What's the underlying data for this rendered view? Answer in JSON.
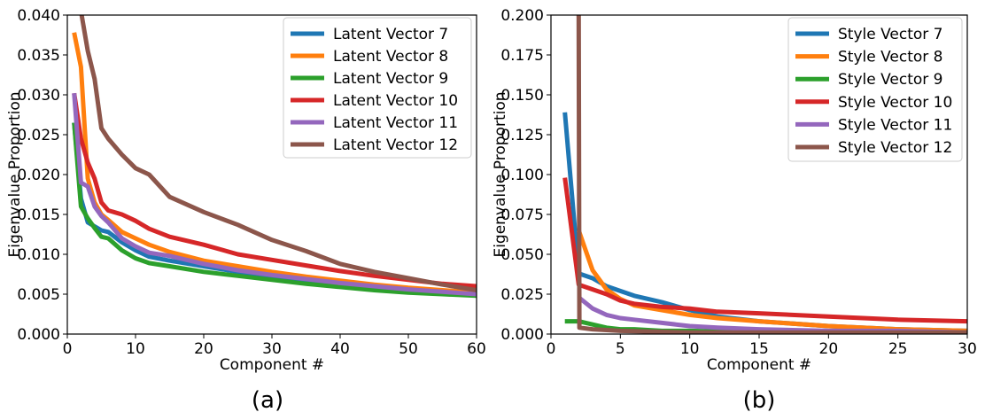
{
  "colors": [
    "#1f77b4",
    "#ff7f0e",
    "#2ca02c",
    "#d62728",
    "#9467bd",
    "#8c564b"
  ],
  "chart_data": [
    {
      "type": "line",
      "caption": "(a)",
      "xlabel": "Component #",
      "ylabel": "Eigenvalue Proportion",
      "xlim": [
        0,
        60
      ],
      "ylim": [
        0,
        0.04
      ],
      "xticks": [
        0,
        10,
        20,
        30,
        40,
        50,
        60
      ],
      "xtick_labels": [
        "0",
        "10",
        "20",
        "30",
        "40",
        "50",
        "60"
      ],
      "yticks": [
        0,
        0.005,
        0.01,
        0.015,
        0.02,
        0.025,
        0.03,
        0.035,
        0.04
      ],
      "ytick_labels": [
        "0.000",
        "0.005",
        "0.010",
        "0.015",
        "0.020",
        "0.025",
        "0.030",
        "0.035",
        "0.040"
      ],
      "legend_position": "top-right",
      "series": [
        {
          "name": "Latent Vector 7",
          "x": [
            1,
            2,
            3,
            4,
            5,
            6,
            8,
            10,
            12,
            15,
            20,
            25,
            30,
            35,
            40,
            45,
            50,
            55,
            60
          ],
          "values": [
            0.0265,
            0.017,
            0.014,
            0.0135,
            0.013,
            0.0128,
            0.0115,
            0.0105,
            0.0097,
            0.0092,
            0.0085,
            0.0078,
            0.0072,
            0.0067,
            0.0062,
            0.0058,
            0.0055,
            0.0052,
            0.005
          ]
        },
        {
          "name": "Latent Vector 8",
          "x": [
            1,
            2,
            3,
            4,
            5,
            6,
            8,
            10,
            12,
            15,
            20,
            25,
            30,
            35,
            40,
            45,
            50,
            55,
            60
          ],
          "values": [
            0.0378,
            0.0335,
            0.0195,
            0.0165,
            0.015,
            0.0143,
            0.0128,
            0.012,
            0.0112,
            0.0103,
            0.0092,
            0.0085,
            0.0078,
            0.0072,
            0.0067,
            0.0062,
            0.0058,
            0.0055,
            0.0052
          ]
        },
        {
          "name": "Latent Vector 9",
          "x": [
            1,
            2,
            3,
            4,
            5,
            6,
            8,
            10,
            12,
            15,
            20,
            25,
            30,
            35,
            40,
            45,
            50,
            55,
            60
          ],
          "values": [
            0.0265,
            0.016,
            0.0145,
            0.0133,
            0.0122,
            0.012,
            0.0105,
            0.0095,
            0.0089,
            0.0085,
            0.0078,
            0.0073,
            0.0068,
            0.0063,
            0.0059,
            0.0055,
            0.0052,
            0.005,
            0.0048
          ]
        },
        {
          "name": "Latent Vector 10",
          "x": [
            1,
            2,
            3,
            4,
            5,
            6,
            8,
            10,
            12,
            15,
            20,
            25,
            30,
            35,
            40,
            45,
            50,
            55,
            60
          ],
          "values": [
            0.0302,
            0.0245,
            0.0215,
            0.0195,
            0.0165,
            0.0155,
            0.015,
            0.0142,
            0.0132,
            0.0122,
            0.0112,
            0.01,
            0.0093,
            0.0086,
            0.0079,
            0.0073,
            0.0068,
            0.0063,
            0.006
          ]
        },
        {
          "name": "Latent Vector 11",
          "x": [
            1,
            2,
            3,
            4,
            5,
            6,
            8,
            10,
            12,
            15,
            20,
            25,
            30,
            35,
            40,
            45,
            50,
            55,
            60
          ],
          "values": [
            0.0302,
            0.019,
            0.0185,
            0.016,
            0.0148,
            0.014,
            0.012,
            0.011,
            0.0102,
            0.0098,
            0.0088,
            0.008,
            0.0074,
            0.0069,
            0.0064,
            0.006,
            0.0056,
            0.0053,
            0.005
          ]
        },
        {
          "name": "Latent Vector 12",
          "x": [
            2,
            3,
            4,
            5,
            6,
            8,
            10,
            12,
            15,
            20,
            25,
            30,
            35,
            40,
            45,
            50,
            55,
            60
          ],
          "values": [
            0.0405,
            0.0355,
            0.032,
            0.0258,
            0.0245,
            0.0225,
            0.0208,
            0.02,
            0.0172,
            0.0153,
            0.0137,
            0.0118,
            0.0104,
            0.0088,
            0.0078,
            0.007,
            0.0062,
            0.0055
          ]
        }
      ]
    },
    {
      "type": "line",
      "caption": "(b)",
      "xlabel": "Component #",
      "ylabel": "Eigenvalue Proportion",
      "xlim": [
        0,
        30
      ],
      "ylim": [
        0,
        0.2
      ],
      "xticks": [
        0,
        5,
        10,
        15,
        20,
        25,
        30
      ],
      "xtick_labels": [
        "0",
        "5",
        "10",
        "15",
        "20",
        "25",
        "30"
      ],
      "yticks": [
        0,
        0.025,
        0.05,
        0.075,
        0.1,
        0.125,
        0.15,
        0.175,
        0.2
      ],
      "ytick_labels": [
        "0.000",
        "0.025",
        "0.050",
        "0.075",
        "0.100",
        "0.125",
        "0.150",
        "0.175",
        "0.200"
      ],
      "legend_position": "top-right",
      "series": [
        {
          "name": "Style Vector 7",
          "x": [
            1,
            2,
            3,
            4,
            5,
            6,
            7,
            8,
            10,
            12,
            15,
            20,
            25,
            30
          ],
          "values": [
            0.139,
            0.038,
            0.035,
            0.03,
            0.027,
            0.024,
            0.022,
            0.02,
            0.015,
            0.011,
            0.008,
            0.005,
            0.003,
            0.002
          ]
        },
        {
          "name": "Style Vector 8",
          "x": [
            2,
            3,
            4,
            5,
            6,
            8,
            10,
            12,
            15,
            20,
            25,
            30
          ],
          "values": [
            0.065,
            0.04,
            0.028,
            0.022,
            0.018,
            0.015,
            0.012,
            0.01,
            0.008,
            0.005,
            0.003,
            0.002
          ]
        },
        {
          "name": "Style Vector 9",
          "x": [
            1,
            2,
            3,
            4,
            5,
            6,
            8,
            10,
            15,
            20,
            25,
            30
          ],
          "values": [
            0.008,
            0.008,
            0.006,
            0.004,
            0.003,
            0.003,
            0.002,
            0.002,
            0.001,
            0.001,
            0.001,
            0.001
          ]
        },
        {
          "name": "Style Vector 10",
          "x": [
            1,
            2,
            3,
            4,
            5,
            6,
            8,
            10,
            12,
            15,
            20,
            25,
            30
          ],
          "values": [
            0.098,
            0.031,
            0.028,
            0.025,
            0.021,
            0.019,
            0.017,
            0.016,
            0.014,
            0.013,
            0.011,
            0.009,
            0.008
          ]
        },
        {
          "name": "Style Vector 11",
          "x": [
            2,
            3,
            4,
            5,
            6,
            8,
            10,
            12,
            15,
            20,
            25,
            30
          ],
          "values": [
            0.023,
            0.016,
            0.012,
            0.01,
            0.009,
            0.007,
            0.005,
            0.004,
            0.003,
            0.002,
            0.002,
            0.001
          ]
        },
        {
          "name": "Style Vector 12",
          "x": [
            2,
            2.05,
            3,
            5,
            10,
            15,
            20,
            25,
            30
          ],
          "values": [
            0.205,
            0.004,
            0.003,
            0.002,
            0.001,
            0.001,
            0.001,
            0.001,
            0.001
          ]
        }
      ]
    }
  ]
}
